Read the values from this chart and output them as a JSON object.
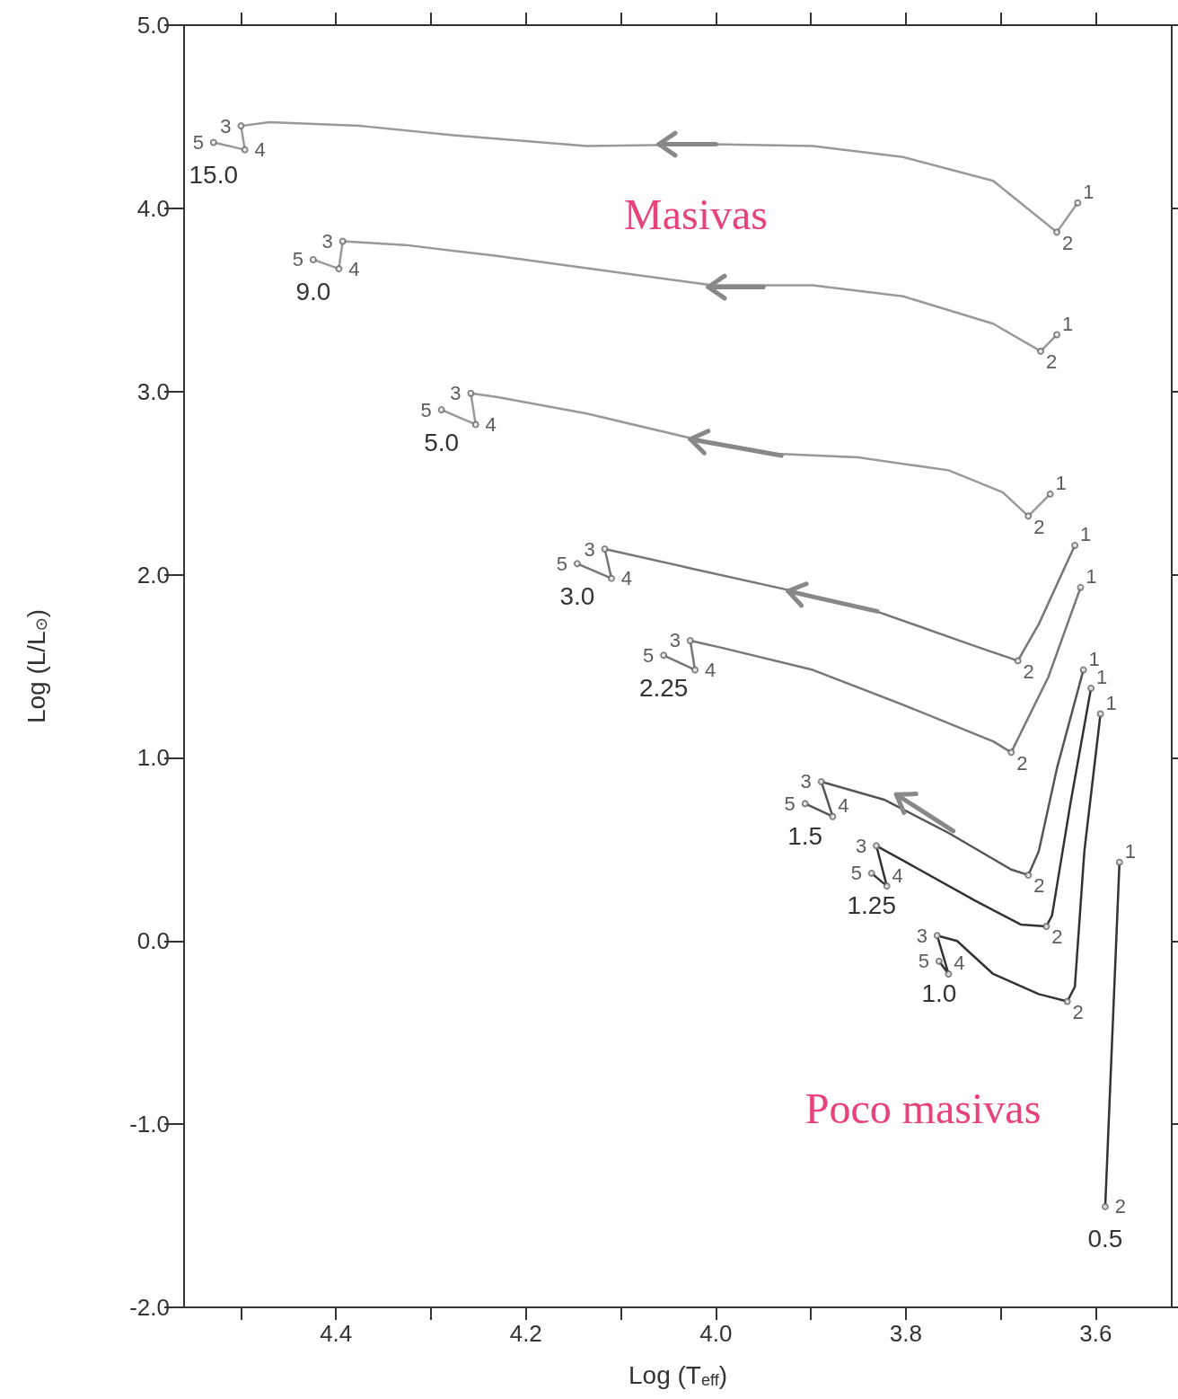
{
  "chart_data": {
    "type": "line",
    "xlabel": "Log (T$_{eff}$)",
    "ylabel": "Log (L/L$_{⊙}$)",
    "xlim": [
      4.56,
      3.52
    ],
    "xticks": [
      {
        "value": 4.5,
        "label": null
      },
      4.4,
      {
        "value": 4.3,
        "label": null
      },
      4.2,
      {
        "value": 4.1,
        "label": null
      },
      {
        "value": 4.0,
        "label": "4.0"
      },
      {
        "value": 3.9,
        "label": null
      },
      3.8,
      {
        "value": 3.7,
        "label": null
      },
      3.6
    ],
    "ylim": [
      -2,
      5
    ],
    "yticks": [
      {
        "value": -2,
        "label": "-2.0"
      },
      {
        "value": -1,
        "label": "-1.0"
      },
      {
        "value": 0,
        "label": "0.0"
      },
      {
        "value": 1,
        "label": "1.0"
      },
      {
        "value": 2,
        "label": "2.0"
      },
      {
        "value": 3,
        "label": "3.0"
      },
      {
        "value": 4,
        "label": "4.0"
      },
      {
        "value": 5,
        "label": "5.0"
      }
    ],
    "marker": "none",
    "series": [
      {
        "name": "15.0",
        "color": "#999999",
        "x": [
          3.619,
          3.641,
          3.708,
          3.803,
          3.898,
          4.003,
          4.136,
          4.279,
          4.374,
          4.47,
          4.5,
          4.496,
          4.529
        ],
        "values": [
          4.03,
          3.87,
          4.15,
          4.28,
          4.34,
          4.35,
          4.34,
          4.4,
          4.45,
          4.47,
          4.45,
          4.32,
          4.36
        ]
      },
      {
        "name": "9.0",
        "color": "#999999",
        "x": [
          3.641,
          3.658,
          3.708,
          3.803,
          3.898,
          4.003,
          4.089,
          4.231,
          4.327,
          4.393,
          4.397,
          4.424
        ],
        "values": [
          3.31,
          3.22,
          3.37,
          3.52,
          3.58,
          3.58,
          3.64,
          3.74,
          3.8,
          3.82,
          3.67,
          3.72
        ]
      },
      {
        "name": "5.0",
        "color": "#999999",
        "x": [
          3.648,
          3.671,
          3.698,
          3.755,
          3.85,
          3.936,
          4.022,
          4.136,
          4.231,
          4.258,
          4.253,
          4.289
        ],
        "values": [
          2.44,
          2.32,
          2.45,
          2.57,
          2.64,
          2.66,
          2.74,
          2.88,
          2.97,
          2.99,
          2.82,
          2.9
        ]
      },
      {
        "name": "3.0",
        "color": "#777777",
        "x": [
          3.622,
          3.66,
          3.682,
          3.727,
          3.831,
          3.927,
          4.031,
          4.117,
          4.11,
          4.146
        ],
        "values": [
          2.16,
          1.73,
          1.53,
          1.61,
          1.8,
          1.92,
          2.04,
          2.14,
          1.98,
          2.06
        ]
      },
      {
        "name": "2.25",
        "color": "#777777",
        "x": [
          3.616,
          3.65,
          3.689,
          3.708,
          3.803,
          3.898,
          3.993,
          4.027,
          4.022,
          4.055
        ],
        "values": [
          1.93,
          1.44,
          1.03,
          1.09,
          1.29,
          1.48,
          1.6,
          1.64,
          1.48,
          1.56
        ]
      },
      {
        "name": "1.5",
        "color": "#555555",
        "x": [
          3.613,
          3.641,
          3.66,
          3.671,
          3.689,
          3.755,
          3.822,
          3.889,
          3.877,
          3.906
        ],
        "values": [
          1.48,
          0.94,
          0.49,
          0.36,
          0.39,
          0.59,
          0.77,
          0.87,
          0.68,
          0.75
        ]
      },
      {
        "name": "1.25",
        "color": "#333333",
        "x": [
          3.605,
          3.627,
          3.646,
          3.652,
          3.679,
          3.727,
          3.803,
          3.831,
          3.82,
          3.836
        ],
        "values": [
          1.38,
          0.74,
          0.14,
          0.08,
          0.09,
          0.22,
          0.44,
          0.52,
          0.3,
          0.37
        ]
      },
      {
        "name": "1.0",
        "color": "#333333",
        "x": [
          3.595,
          3.612,
          3.622,
          3.63,
          3.66,
          3.708,
          3.746,
          3.767,
          3.755,
          3.765
        ],
        "values": [
          1.24,
          0.49,
          -0.25,
          -0.33,
          -0.29,
          -0.18,
          0.0,
          0.03,
          -0.18,
          -0.11
        ]
      },
      {
        "name": "0.5",
        "color": "#333333",
        "x": [
          3.575,
          3.59
        ],
        "values": [
          0.43,
          -1.45
        ]
      }
    ],
    "annotations": [
      "Masivas",
      "Poco masivas",
      {
        "text": "1",
        "x": 3.619,
        "y": 4.03
      },
      {
        "text": "2",
        "x": 3.641,
        "y": 3.87
      },
      {
        "text": "3",
        "x": 4.5,
        "y": 4.45
      },
      {
        "text": "4",
        "x": 4.496,
        "y": 4.32
      },
      {
        "text": "5",
        "x": 4.529,
        "y": 4.36
      },
      {
        "text": "1",
        "x": 3.641,
        "y": 3.31
      },
      {
        "text": "2",
        "x": 3.658,
        "y": 3.22
      },
      {
        "text": "3",
        "x": 4.393,
        "y": 3.82
      },
      {
        "text": "4",
        "x": 4.397,
        "y": 3.67
      },
      {
        "text": "5",
        "x": 4.424,
        "y": 3.72
      },
      {
        "text": "1",
        "x": 3.648,
        "y": 2.44
      },
      {
        "text": "2",
        "x": 3.671,
        "y": 2.32
      },
      {
        "text": "3",
        "x": 4.258,
        "y": 2.99
      },
      {
        "text": "4",
        "x": 4.253,
        "y": 2.82
      },
      {
        "text": "5",
        "x": 4.289,
        "y": 2.9
      },
      {
        "text": "1",
        "x": 3.622,
        "y": 2.16
      },
      {
        "text": "2",
        "x": 3.682,
        "y": 1.53
      },
      {
        "text": "3",
        "x": 4.117,
        "y": 2.14
      },
      {
        "text": "4",
        "x": 4.11,
        "y": 1.98
      },
      {
        "text": "5",
        "x": 4.146,
        "y": 2.06
      },
      {
        "text": "1",
        "x": 3.616,
        "y": 1.93
      },
      {
        "text": "2",
        "x": 3.689,
        "y": 1.03
      },
      {
        "text": "3",
        "x": 4.027,
        "y": 1.64
      },
      {
        "text": "4",
        "x": 4.022,
        "y": 1.48
      },
      {
        "text": "5",
        "x": 4.055,
        "y": 1.56
      },
      {
        "text": "1",
        "x": 3.613,
        "y": 1.48
      },
      {
        "text": "2",
        "x": 3.671,
        "y": 0.36
      },
      {
        "text": "3",
        "x": 3.889,
        "y": 0.87
      },
      {
        "text": "4",
        "x": 3.877,
        "y": 0.68
      },
      {
        "text": "5",
        "x": 3.906,
        "y": 0.75
      },
      {
        "text": "1",
        "x": 3.605,
        "y": 1.38
      },
      {
        "text": "2",
        "x": 3.652,
        "y": 0.08
      },
      {
        "text": "3",
        "x": 3.831,
        "y": 0.52
      },
      {
        "text": "4",
        "x": 3.82,
        "y": 0.3
      },
      {
        "text": "5",
        "x": 3.836,
        "y": 0.37
      },
      {
        "text": "1",
        "x": 3.595,
        "y": 1.24
      },
      {
        "text": "2",
        "x": 3.63,
        "y": -0.33
      },
      {
        "text": "3",
        "x": 3.767,
        "y": 0.03
      },
      {
        "text": "4",
        "x": 3.755,
        "y": -0.18
      },
      {
        "text": "5",
        "x": 3.765,
        "y": -0.11
      },
      {
        "text": "1",
        "x": 3.575,
        "y": 0.43
      },
      {
        "text": "2",
        "x": 3.59,
        "y": -1.45
      }
    ]
  }
}
